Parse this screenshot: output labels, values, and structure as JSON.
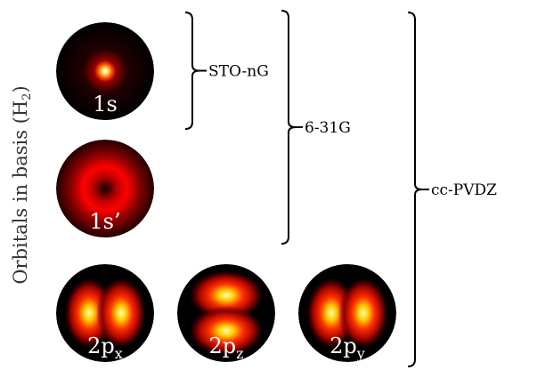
{
  "axis_label": {
    "text": "Orbitals in basis (H",
    "sub": "2",
    "end": ")"
  },
  "orbitals": [
    {
      "label": "1s"
    },
    {
      "label": "1s’"
    },
    {
      "label": "2p",
      "sub": "x"
    },
    {
      "label": "2p",
      "sub": "z"
    },
    {
      "label": "2p",
      "sub": "y"
    }
  ],
  "brackets": [
    {
      "label": "STO-nG"
    },
    {
      "label": "6-31G"
    },
    {
      "label": "cc-PVDZ"
    }
  ]
}
